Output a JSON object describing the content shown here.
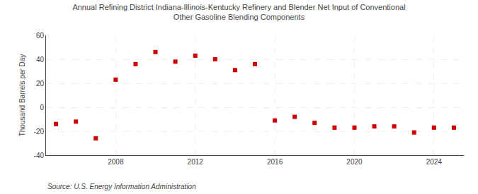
{
  "chart_data": {
    "type": "scatter",
    "title": "Annual Refining District Indiana-Illinois-Kentucky Refinery and Blender Net Input of Conventional\nOther Gasoline Blending Components",
    "ylabel": "Thousand Barrels per Day",
    "annotations": [
      "Source: U.S. Energy Information Administration"
    ],
    "x": [
      2005,
      2006,
      2007,
      2008,
      2009,
      2010,
      2011,
      2012,
      2013,
      2014,
      2015,
      2016,
      2017,
      2018,
      2019,
      2020,
      2021,
      2022,
      2023,
      2024,
      2025
    ],
    "values": [
      -14,
      -12,
      -26,
      23,
      36,
      46,
      38,
      43,
      40,
      31,
      36,
      -11,
      -8,
      -13,
      -17,
      -17,
      -16,
      -16,
      -21,
      -17,
      -17
    ],
    "color": "#cc0000",
    "marker": "square",
    "xlim": [
      2004.5,
      2025.5
    ],
    "ylim": [
      -40,
      60
    ],
    "xticks": [
      2008,
      2012,
      2016,
      2020,
      2024
    ],
    "yticks": [
      -40,
      -20,
      0,
      20,
      40,
      60
    ],
    "grid": true
  }
}
